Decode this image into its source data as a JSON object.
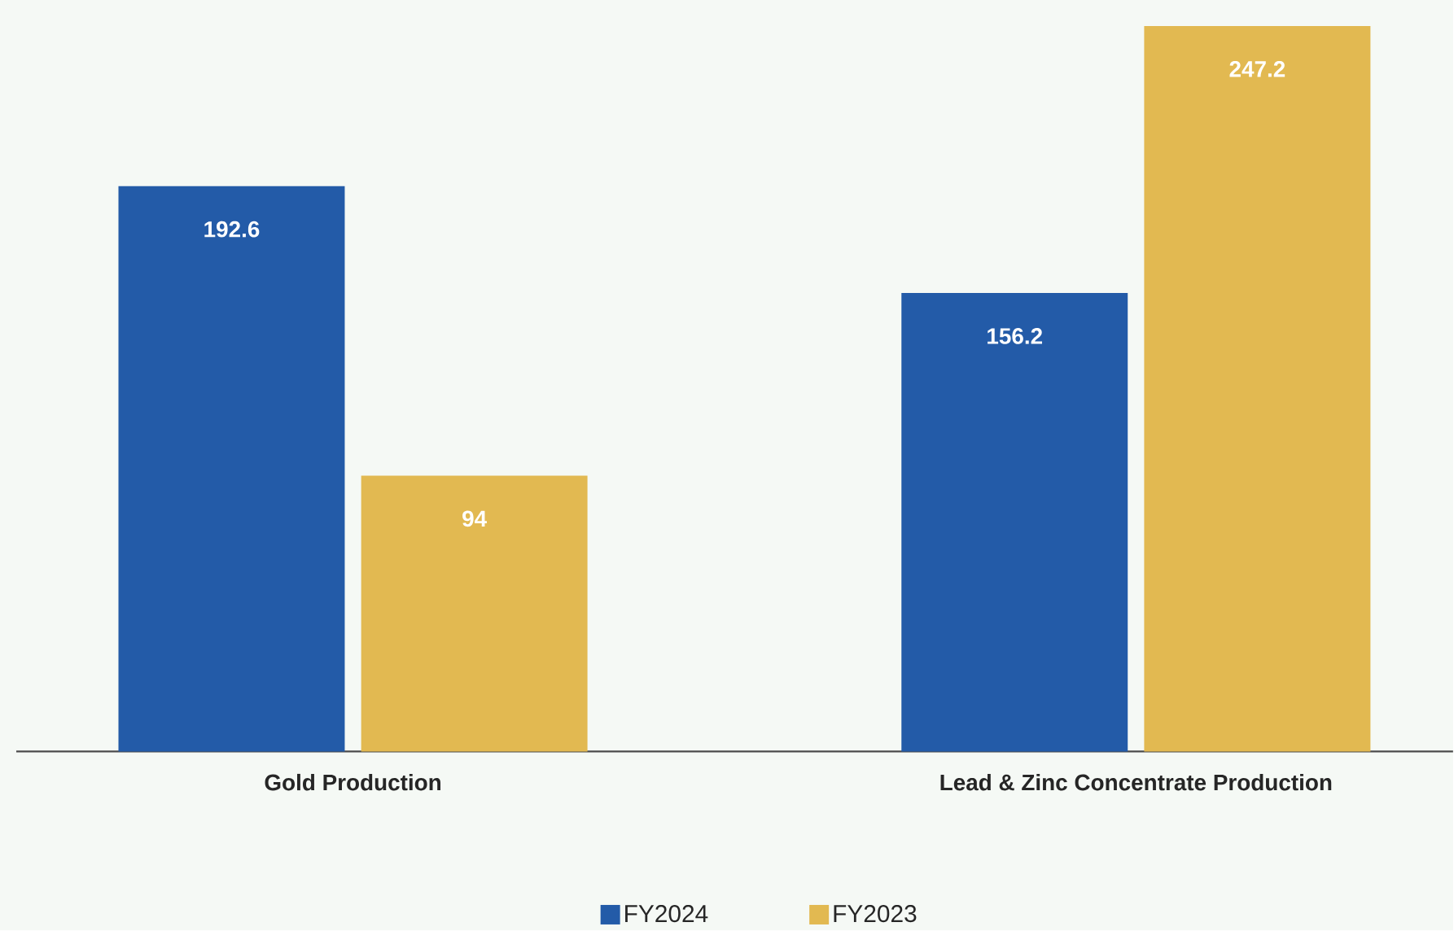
{
  "chart_data": {
    "type": "bar",
    "categories": [
      "Gold Production",
      "Lead & Zinc Concentrate Production"
    ],
    "series": [
      {
        "name": "FY2024",
        "color": "#235ba8",
        "values": [
          192.6,
          156.2
        ]
      },
      {
        "name": "FY2023",
        "color": "#e2b951",
        "values": [
          94,
          247.2
        ]
      }
    ],
    "data_labels": true,
    "legend": "bottom"
  }
}
